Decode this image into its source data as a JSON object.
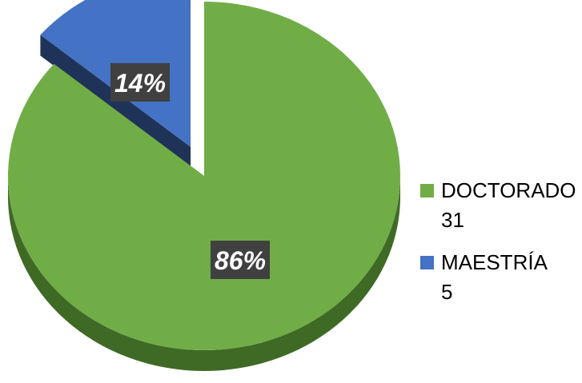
{
  "chart_data": {
    "type": "pie",
    "style": "3d-exploded",
    "title": "",
    "categories": [
      "DOCTORADO",
      "MAESTRÍA"
    ],
    "values": [
      31,
      5
    ],
    "percent_labels": [
      "86%",
      "14%"
    ],
    "legend": {
      "position": "right",
      "items": [
        {
          "label": "DOCTORADO",
          "value": "31",
          "color": "#70AD47"
        },
        {
          "label": "MAESTRÍA",
          "value": "5",
          "color": "#4472C4"
        }
      ]
    },
    "colors": {
      "doctorado_top": "#70AD47",
      "doctorado_side": "#3F6A25",
      "maestria_top": "#4472C4",
      "maestria_side": "#1F3864",
      "label_bg": "#404040",
      "label_text": "#FFFFFF",
      "legend_text": "#000000"
    }
  }
}
